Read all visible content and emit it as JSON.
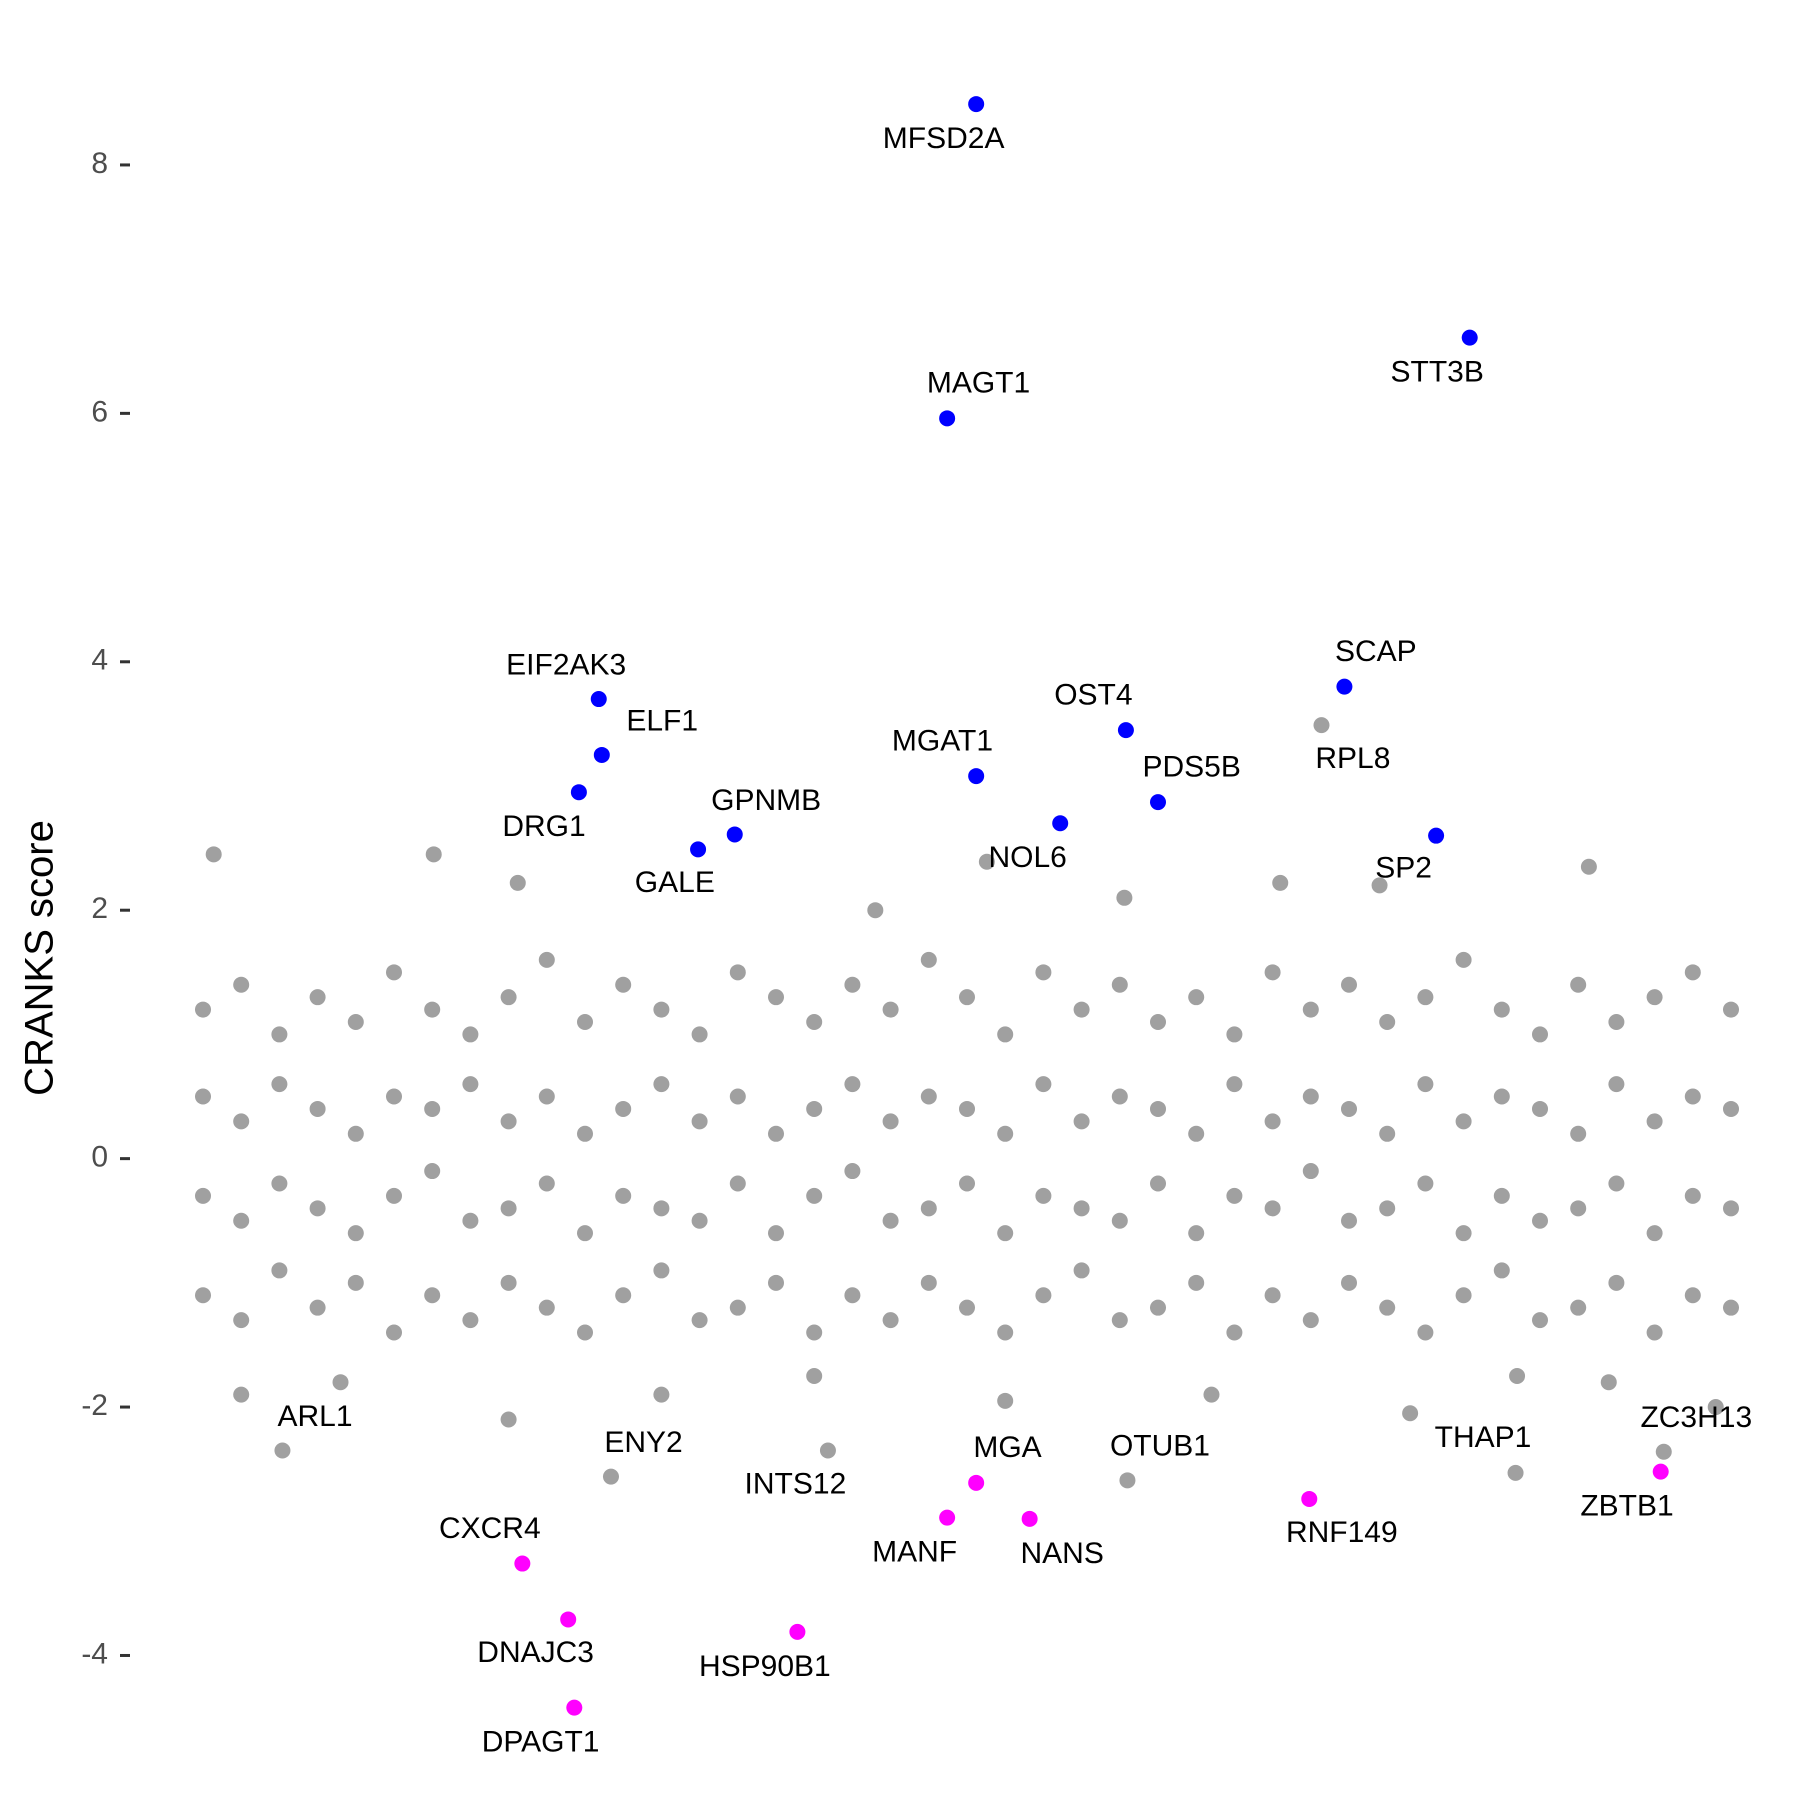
{
  "chart_data": {
    "type": "scatter",
    "y_label": "CRANKS score",
    "xlim": [
      0,
      100
    ],
    "ylim": [
      -4.6,
      8.7
    ],
    "yticks": [
      -4,
      -2,
      0,
      2,
      4,
      6,
      8
    ],
    "series": [
      {
        "color": "#a0a0a0",
        "x": [
          0,
          0,
          0,
          0,
          2.5,
          2.5,
          2.5,
          2.5,
          5,
          5,
          5,
          5,
          7.5,
          7.5,
          7.5,
          7.5,
          10,
          10,
          10,
          10,
          12.5,
          12.5,
          12.5,
          12.5,
          15,
          15,
          15,
          15,
          17.5,
          17.5,
          17.5,
          17.5,
          20,
          20,
          20,
          20,
          22.5,
          22.5,
          22.5,
          22.5,
          25,
          25,
          25,
          25,
          27.5,
          27.5,
          27.5,
          27.5,
          30,
          30,
          30,
          30,
          32.5,
          32.5,
          32.5,
          32.5,
          35,
          35,
          35,
          35,
          37.5,
          37.5,
          37.5,
          37.5,
          40,
          40,
          40,
          40,
          42.5,
          42.5,
          42.5,
          42.5,
          45,
          45,
          45,
          45,
          47.5,
          47.5,
          47.5,
          47.5,
          50,
          50,
          50,
          50,
          52.5,
          52.5,
          52.5,
          52.5,
          55,
          55,
          55,
          55,
          57.5,
          57.5,
          57.5,
          57.5,
          60,
          60,
          60,
          60,
          62.5,
          62.5,
          62.5,
          62.5,
          65,
          65,
          65,
          65,
          67.5,
          67.5,
          67.5,
          67.5,
          70,
          70,
          70,
          70,
          72.5,
          72.5,
          72.5,
          72.5,
          75,
          75,
          75,
          75,
          77.5,
          77.5,
          77.5,
          77.5,
          80,
          80,
          80,
          80,
          82.5,
          82.5,
          82.5,
          82.5,
          85,
          85,
          85,
          85,
          87.5,
          87.5,
          87.5,
          87.5,
          90,
          90,
          90,
          90,
          92.5,
          92.5,
          92.5,
          92.5,
          95,
          95,
          95,
          95,
          97.5,
          97.5,
          97.5,
          97.5,
          100,
          100,
          100,
          100,
          0.7,
          15.1,
          20.6,
          51.3,
          70.5,
          77,
          90.7,
          60.3,
          44,
          2.5,
          9,
          30,
          66,
          79,
          99,
          52.5,
          40,
          20,
          86,
          92
        ],
        "values": [
          1.2,
          0.5,
          -0.3,
          -1.1,
          1.4,
          0.3,
          -0.5,
          -1.3,
          1.0,
          0.6,
          -0.2,
          -0.9,
          1.3,
          0.4,
          -0.4,
          -1.2,
          1.1,
          0.2,
          -0.6,
          -1.0,
          1.5,
          0.5,
          -0.3,
          -1.4,
          1.2,
          0.4,
          -0.1,
          -1.1,
          1.0,
          0.6,
          -0.5,
          -1.3,
          1.3,
          0.3,
          -0.4,
          -1.0,
          1.6,
          0.5,
          -0.2,
          -1.2,
          1.1,
          0.2,
          -0.6,
          -1.4,
          1.4,
          0.4,
          -0.3,
          -1.1,
          1.2,
          0.6,
          -0.4,
          -0.9,
          1.0,
          0.3,
          -0.5,
          -1.3,
          1.5,
          0.5,
          -0.2,
          -1.2,
          1.3,
          0.2,
          -0.6,
          -1.0,
          1.1,
          0.4,
          -0.3,
          -1.4,
          1.4,
          0.6,
          -0.1,
          -1.1,
          1.2,
          0.3,
          -0.5,
          -1.3,
          1.6,
          0.5,
          -0.4,
          -1.0,
          1.3,
          0.4,
          -0.2,
          -1.2,
          1.0,
          0.2,
          -0.6,
          -1.4,
          1.5,
          0.6,
          -0.3,
          -1.1,
          1.2,
          0.3,
          -0.4,
          -0.9,
          1.4,
          0.5,
          -0.5,
          -1.3,
          1.1,
          0.4,
          -0.2,
          -1.2,
          1.3,
          0.2,
          -0.6,
          -1.0,
          1.0,
          0.6,
          -0.3,
          -1.4,
          1.5,
          0.3,
          -0.4,
          -1.1,
          1.2,
          0.5,
          -0.1,
          -1.3,
          1.4,
          0.4,
          -0.5,
          -1.0,
          1.1,
          0.2,
          -0.4,
          -1.2,
          1.3,
          0.6,
          -0.2,
          -1.4,
          1.6,
          0.3,
          -0.6,
          -1.1,
          1.2,
          0.5,
          -0.3,
          -0.9,
          1.0,
          0.4,
          -0.5,
          -1.3,
          1.4,
          0.2,
          -0.4,
          -1.2,
          1.1,
          0.6,
          -0.2,
          -1.0,
          1.3,
          0.3,
          -0.6,
          -1.4,
          1.5,
          0.5,
          -0.3,
          -1.1,
          1.2,
          0.4,
          -0.4,
          -1.2,
          2.45,
          2.45,
          2.22,
          2.39,
          2.22,
          2.2,
          2.35,
          2.1,
          2.0,
          -1.9,
          -1.8,
          -1.9,
          -1.9,
          -2.05,
          -2.0,
          -1.95,
          -1.75,
          -2.1,
          -1.75,
          -1.8
        ]
      },
      {
        "color": "#a0a0a0",
        "labels": [
          "RPL8",
          "ARL1",
          "ENY2",
          "INTS12",
          "OTUB1",
          "THAP1",
          "ZC3H13"
        ],
        "x": [
          73.2,
          5.2,
          26.7,
          40.9,
          60.5,
          85.9,
          95.6
        ],
        "values": [
          3.49,
          -2.35,
          -2.56,
          -2.35,
          -2.59,
          -2.53,
          -2.36
        ]
      },
      {
        "color": "#0000ff",
        "labels": [
          "MFSD2A",
          "STT3B",
          "MAGT1",
          "SCAP",
          "EIF2AK3",
          "OST4",
          "ELF1",
          "MGAT1",
          "DRG1",
          "PDS5B",
          "NOL6",
          "GPNMB",
          "GALE",
          "SP2"
        ],
        "x": [
          50.6,
          82.9,
          48.7,
          74.7,
          25.9,
          60.4,
          26.1,
          50.6,
          24.6,
          62.5,
          56.1,
          34.8,
          32.4,
          80.7
        ],
        "values": [
          8.49,
          6.61,
          5.96,
          3.8,
          3.7,
          3.45,
          3.25,
          3.08,
          2.95,
          2.87,
          2.7,
          2.61,
          2.49,
          2.6
        ]
      },
      {
        "color": "#ff00ff",
        "labels": [
          "MGA",
          "MANF",
          "NANS",
          "RNF149",
          "ZBTB1",
          "CXCR4",
          "DNAJC3",
          "HSP90B1",
          "DPAGT1"
        ],
        "x": [
          50.6,
          48.7,
          54.1,
          72.4,
          95.4,
          20.9,
          23.9,
          38.9,
          24.3
        ],
        "values": [
          -2.61,
          -2.89,
          -2.9,
          -2.74,
          -2.52,
          -3.26,
          -3.71,
          -3.81,
          -4.42
        ]
      }
    ]
  }
}
